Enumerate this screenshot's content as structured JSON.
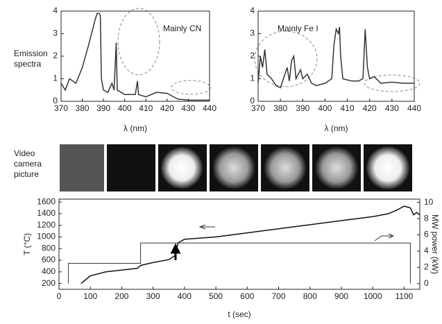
{
  "row_labels": {
    "spectra": [
      "Emission",
      "spectra"
    ],
    "video": [
      "Video",
      "camera",
      "picture"
    ]
  },
  "chart_data": [
    {
      "type": "line",
      "xlabel": "λ (nm)",
      "annotation": "Mainly CN",
      "xlim": [
        370,
        440
      ],
      "xticks": [
        370,
        380,
        390,
        400,
        410,
        420,
        430,
        440
      ],
      "ylim": [
        0,
        4
      ],
      "yticks": [
        0,
        1,
        2,
        3,
        4
      ],
      "series": [
        {
          "color": "#333333",
          "x": [
            370,
            372,
            374,
            377,
            380,
            383,
            386,
            387,
            388,
            388.5,
            389,
            390,
            392,
            394,
            395,
            396,
            396.5,
            400,
            405,
            406,
            406.5,
            410,
            415,
            420,
            425,
            430,
            440
          ],
          "values": [
            0.8,
            0.5,
            1.0,
            0.8,
            1.5,
            2.5,
            3.6,
            3.9,
            3.9,
            3.8,
            1.0,
            0.5,
            0.4,
            0.8,
            0.5,
            2.6,
            0.5,
            0.3,
            0.3,
            0.9,
            0.3,
            0.2,
            0.4,
            0.35,
            0.1,
            0.05,
            0.05
          ]
        }
      ]
    },
    {
      "type": "line",
      "xlabel": "λ (nm)",
      "annotation": "Mainly Fe I",
      "xlim": [
        370,
        440
      ],
      "xticks": [
        370,
        380,
        390,
        400,
        410,
        420,
        430,
        440
      ],
      "ylim": [
        0,
        4
      ],
      "yticks": [
        0,
        1,
        2,
        3,
        4
      ],
      "series": [
        {
          "color": "#333333",
          "x": [
            370,
            371,
            372,
            373,
            374,
            376,
            378,
            380,
            382,
            383,
            384,
            385,
            386,
            387,
            389,
            390,
            392,
            394,
            396,
            400,
            403,
            404,
            405,
            406,
            406.5,
            407,
            408,
            412,
            415,
            417,
            418,
            419,
            420,
            422,
            425,
            430,
            435,
            440
          ],
          "values": [
            0.8,
            2.0,
            1.5,
            2.3,
            1.2,
            1.0,
            0.7,
            0.6,
            1.2,
            1.5,
            0.9,
            1.8,
            2.0,
            1.0,
            1.4,
            1.0,
            1.2,
            0.8,
            0.7,
            0.8,
            1.0,
            2.5,
            3.2,
            3.0,
            3.3,
            2.0,
            1.0,
            0.9,
            0.9,
            1.0,
            3.2,
            1.5,
            1.0,
            1.1,
            0.8,
            0.85,
            0.8,
            0.8
          ]
        }
      ]
    },
    {
      "type": "line",
      "xlabel": "t (sec)",
      "ylabel": "T (°C)",
      "y2label": "MW power (kW)",
      "xlim": [
        0,
        1150
      ],
      "xticks": [
        0,
        100,
        200,
        300,
        400,
        500,
        600,
        700,
        800,
        900,
        1000,
        1100
      ],
      "ylim": [
        100,
        1650
      ],
      "yticks": [
        200,
        400,
        600,
        800,
        1000,
        1200,
        1400,
        1600
      ],
      "y2lim": [
        -0.7,
        10.4
      ],
      "y2ticks": [
        0,
        2,
        4,
        6,
        8,
        10
      ],
      "series": [
        {
          "color": "#111111",
          "x": [
            70,
            100,
            150,
            200,
            250,
            260,
            300,
            350,
            370,
            380,
            390,
            400,
            500,
            600,
            700,
            800,
            900,
            1000,
            1050,
            1080,
            1100,
            1120,
            1130,
            1140,
            1150
          ],
          "values": [
            200,
            330,
            400,
            430,
            460,
            510,
            560,
            610,
            680,
            900,
            930,
            960,
            1000,
            1070,
            1140,
            1210,
            1280,
            1350,
            1400,
            1470,
            1530,
            1500,
            1380,
            1420,
            1380
          ]
        },
        {
          "color": "#333333",
          "axis": "y2",
          "x": [
            30,
            30,
            260,
            260,
            1120,
            1120
          ],
          "values": [
            0,
            2.5,
            2.5,
            5,
            5,
            0
          ]
        }
      ]
    }
  ]
}
